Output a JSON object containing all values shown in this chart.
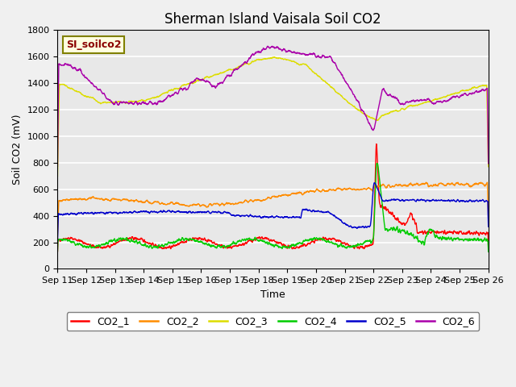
{
  "title": "Sherman Island Vaisala Soil CO2",
  "ylabel": "Soil CO2 (mV)",
  "xlabel": "Time",
  "legend_label": "SI_soilco2",
  "x_tick_labels": [
    "Sep 11",
    "Sep 12",
    "Sep 13",
    "Sep 14",
    "Sep 15",
    "Sep 16",
    "Sep 17",
    "Sep 18",
    "Sep 19",
    "Sep 20",
    "Sep 21",
    "Sep 22",
    "Sep 23",
    "Sep 24",
    "Sep 25",
    "Sep 26"
  ],
  "ylim": [
    0,
    1800
  ],
  "yticks": [
    0,
    200,
    400,
    600,
    800,
    1000,
    1200,
    1400,
    1600,
    1800
  ],
  "series": {
    "CO2_1": {
      "color": "#ff0000"
    },
    "CO2_2": {
      "color": "#ff8c00"
    },
    "CO2_3": {
      "color": "#dddd00"
    },
    "CO2_4": {
      "color": "#00cc00"
    },
    "CO2_5": {
      "color": "#0000cc"
    },
    "CO2_6": {
      "color": "#aa00aa"
    }
  },
  "fig_width": 6.4,
  "fig_height": 4.8,
  "dpi": 100,
  "plot_bg_color": "#e8e8e8",
  "fig_bg_color": "#f0f0f0",
  "grid_color": "#ffffff",
  "title_fontsize": 12,
  "axis_fontsize": 9,
  "tick_fontsize": 8,
  "legend_fontsize": 9,
  "linewidth": 1.0
}
